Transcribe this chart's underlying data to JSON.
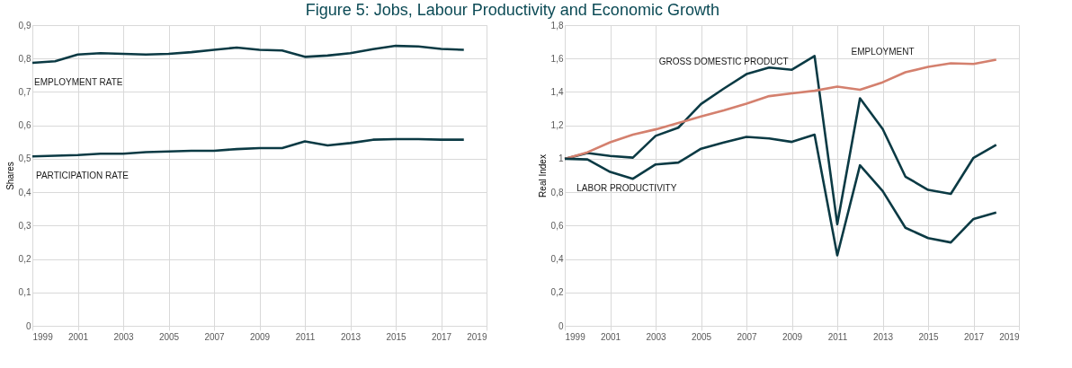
{
  "chart_data": [
    {
      "type": "line",
      "title": "Figure 5: Jobs, Labour Productivity and Economic Growth",
      "ylabel": "Shares",
      "x": [
        1999,
        2000,
        2001,
        2002,
        2003,
        2004,
        2005,
        2006,
        2007,
        2008,
        2009,
        2010,
        2011,
        2012,
        2013,
        2014,
        2015,
        2016,
        2017,
        2018
      ],
      "series": [
        {
          "name": "EMPLOYMENT RATE",
          "color": "#0b3a44",
          "values": [
            0.787,
            0.792,
            0.812,
            0.816,
            0.814,
            0.812,
            0.814,
            0.819,
            0.826,
            0.833,
            0.826,
            0.824,
            0.805,
            0.809,
            0.816,
            0.828,
            0.838,
            0.836,
            0.829,
            0.826
          ]
        },
        {
          "name": "PARTICIPATION RATE",
          "color": "#0b3a44",
          "values": [
            0.507,
            0.509,
            0.511,
            0.515,
            0.515,
            0.52,
            0.522,
            0.524,
            0.524,
            0.529,
            0.532,
            0.532,
            0.552,
            0.54,
            0.547,
            0.557,
            0.559,
            0.559,
            0.557,
            0.557
          ]
        }
      ],
      "xlim": [
        1999,
        2019
      ],
      "xticks": [
        1999,
        2001,
        2003,
        2005,
        2007,
        2009,
        2011,
        2013,
        2015,
        2017,
        2019
      ],
      "ylim": [
        0,
        0.9
      ],
      "yticks": [
        0,
        {
          "value": 0.1,
          "label": "0,1"
        },
        {
          "value": 0.2,
          "label": "0,2"
        },
        {
          "value": 0.3,
          "label": "0,3"
        },
        {
          "value": 0.4,
          "label": "0,4"
        },
        {
          "value": 0.5,
          "label": "0,5"
        },
        {
          "value": 0.6,
          "label": "0,6"
        },
        {
          "value": 0.7,
          "label": "0,7"
        },
        {
          "value": 0.8,
          "label": "0,8"
        },
        {
          "value": 0.9,
          "label": "0,9"
        }
      ],
      "grid": true,
      "marker": "none",
      "line_style": "solid"
    },
    {
      "type": "line",
      "ylabel": "Real Index",
      "x": [
        1999,
        2000,
        2001,
        2002,
        2003,
        2004,
        2005,
        2006,
        2007,
        2008,
        2009,
        2010,
        2011,
        2012,
        2013,
        2014,
        2015,
        2016,
        2017,
        2018
      ],
      "series": [
        {
          "name": "GROSS DOMESTIC PRODUCT",
          "color": "#0b3a44",
          "values": [
            1.0,
            1.034,
            1.017,
            1.007,
            1.137,
            1.186,
            1.328,
            1.42,
            1.507,
            1.546,
            1.533,
            1.615,
            0.608,
            1.362,
            1.178,
            0.893,
            0.814,
            0.79,
            1.006,
            1.084
          ]
        },
        {
          "name": "EMPLOYMENT",
          "color": "#d4806e",
          "values": [
            1.0,
            1.039,
            1.099,
            1.144,
            1.176,
            1.214,
            1.253,
            1.289,
            1.33,
            1.375,
            1.392,
            1.407,
            1.432,
            1.413,
            1.458,
            1.518,
            1.55,
            1.572,
            1.568,
            1.593
          ]
        },
        {
          "name": "LABOR PRODUCTIVITY",
          "color": "#0b3a44",
          "values": [
            1.0,
            0.996,
            0.921,
            0.88,
            0.966,
            0.977,
            1.06,
            1.098,
            1.131,
            1.122,
            1.101,
            1.144,
            0.422,
            0.961,
            0.807,
            0.587,
            0.525,
            0.499,
            0.64,
            0.679
          ]
        }
      ],
      "xlim": [
        1999,
        2019
      ],
      "xticks": [
        1999,
        2001,
        2003,
        2005,
        2007,
        2009,
        2011,
        2013,
        2015,
        2017,
        2019
      ],
      "ylim": [
        0,
        1.8
      ],
      "yticks": [
        0,
        {
          "value": 0.2,
          "label": "0,2"
        },
        {
          "value": 0.4,
          "label": "0,4"
        },
        {
          "value": 0.6,
          "label": "0,6"
        },
        {
          "value": 0.8,
          "label": "0,8"
        },
        1,
        {
          "value": 1.2,
          "label": "1,2"
        },
        {
          "value": 1.4,
          "label": "1,4"
        },
        {
          "value": 1.6,
          "label": "1,6"
        },
        {
          "value": 1.8,
          "label": "1,8"
        }
      ],
      "grid": true,
      "marker": "none",
      "line_style": "solid"
    }
  ]
}
